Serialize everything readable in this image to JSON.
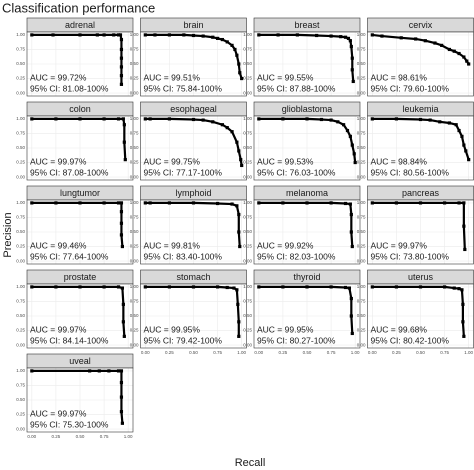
{
  "title": "Classification performance",
  "x_label": "Recall",
  "y_label": "Precision",
  "axes": {
    "xlim": [
      -0.05,
      1.05
    ],
    "ylim": [
      -0.05,
      1.05
    ],
    "xticks": [
      {
        "value": 0,
        "label": "0.00"
      },
      {
        "value": 0.25,
        "label": "0.25"
      },
      {
        "value": 0.5,
        "label": "0.50"
      },
      {
        "value": 0.75,
        "label": "0.75"
      },
      {
        "value": 1,
        "label": "1.00"
      }
    ],
    "yticks": [
      {
        "value": 0,
        "label": "0.00"
      },
      {
        "value": 0.25,
        "label": "0.25"
      },
      {
        "value": 0.5,
        "label": "0.50"
      },
      {
        "value": 0.75,
        "label": "0.75"
      },
      {
        "value": 1,
        "label": "1.00"
      }
    ]
  },
  "chart_data": [
    {
      "type": "scatter",
      "title": "adrenal",
      "annotations": [
        "AUC = 99.72%",
        "95% CI: 81.08-100%"
      ],
      "x": [
        0,
        0.22,
        0.5,
        0.68,
        0.75,
        0.85,
        0.9,
        0.92,
        0.93,
        0.93,
        0.93,
        0.93,
        0.93,
        0.93
      ],
      "values": [
        1,
        1,
        1,
        1,
        1,
        1,
        1,
        1,
        0.92,
        0.75,
        0.6,
        0.45,
        0.3,
        0.15
      ]
    },
    {
      "type": "scatter",
      "title": "brain",
      "annotations": [
        "AUC = 99.51%",
        "95% CI: 75.84-100%"
      ],
      "x": [
        0,
        0.1,
        0.25,
        0.4,
        0.5,
        0.6,
        0.7,
        0.75,
        0.8,
        0.85,
        0.9,
        0.93,
        0.95,
        0.97,
        0.98,
        1
      ],
      "values": [
        1,
        1,
        1,
        1,
        0.99,
        0.98,
        0.96,
        0.94,
        0.92,
        0.88,
        0.82,
        0.75,
        0.65,
        0.5,
        0.35,
        0.25
      ]
    },
    {
      "type": "scatter",
      "title": "breast",
      "annotations": [
        "AUC = 99.55%",
        "95% CI: 87.88-100%"
      ],
      "x": [
        0,
        0.2,
        0.4,
        0.6,
        0.75,
        0.85,
        0.9,
        0.93,
        0.95,
        0.96,
        0.97,
        0.97,
        0.98
      ],
      "values": [
        1,
        1,
        1,
        0.99,
        0.98,
        0.97,
        0.96,
        0.94,
        0.9,
        0.8,
        0.6,
        0.4,
        0.2
      ]
    },
    {
      "type": "scatter",
      "title": "cervix",
      "annotations": [
        "AUC = 98.61%",
        "95% CI: 79.60-100%"
      ],
      "x": [
        0,
        0.1,
        0.3,
        0.45,
        0.55,
        0.65,
        0.72,
        0.8,
        0.85,
        0.9,
        0.95,
        0.98,
        1
      ],
      "values": [
        1,
        0.98,
        0.95,
        0.93,
        0.9,
        0.86,
        0.82,
        0.75,
        0.72,
        0.68,
        0.62,
        0.55,
        0.5
      ]
    },
    {
      "type": "scatter",
      "title": "colon",
      "annotations": [
        "AUC = 99.97%",
        "95% CI: 87.08-100%"
      ],
      "x": [
        0,
        0.25,
        0.5,
        0.75,
        0.9,
        0.95,
        0.96,
        0.96,
        0.97
      ],
      "values": [
        1,
        1,
        1,
        1,
        1,
        1,
        0.9,
        0.6,
        0.3
      ]
    },
    {
      "type": "scatter",
      "title": "esophageal",
      "annotations": [
        "AUC = 99.75%",
        "95% CI: 77.17-100%"
      ],
      "x": [
        0,
        0.05,
        0.25,
        0.5,
        0.6,
        0.7,
        0.8,
        0.85,
        0.9,
        0.95,
        0.97,
        0.99,
        1
      ],
      "values": [
        1,
        1,
        1,
        0.99,
        0.98,
        0.95,
        0.9,
        0.85,
        0.78,
        0.6,
        0.45,
        0.3,
        0.2
      ]
    },
    {
      "type": "scatter",
      "title": "glioblastoma",
      "annotations": [
        "AUC = 99.53%",
        "95% CI: 76.03-100%"
      ],
      "x": [
        0,
        0.25,
        0.5,
        0.65,
        0.75,
        0.82,
        0.88,
        0.92,
        0.95,
        0.97,
        0.99,
        1
      ],
      "values": [
        1,
        1,
        1,
        0.99,
        0.98,
        0.95,
        0.9,
        0.8,
        0.7,
        0.55,
        0.4,
        0.25
      ]
    },
    {
      "type": "scatter",
      "title": "leukemia",
      "annotations": [
        "AUC = 98.84%",
        "95% CI: 80.56-100%"
      ],
      "x": [
        0,
        0.25,
        0.5,
        0.6,
        0.7,
        0.8,
        0.87,
        0.9,
        0.93,
        0.95,
        0.97,
        1
      ],
      "values": [
        1,
        1,
        0.99,
        0.98,
        0.95,
        0.93,
        0.9,
        0.8,
        0.7,
        0.55,
        0.45,
        0.3
      ]
    },
    {
      "type": "scatter",
      "title": "lungtumor",
      "annotations": [
        "AUC = 99.46%",
        "95% CI: 77.64-100%"
      ],
      "x": [
        0,
        0.25,
        0.5,
        0.75,
        0.9,
        0.93,
        0.93,
        0.93,
        0.93,
        0.94
      ],
      "values": [
        1,
        1,
        1,
        1,
        1,
        1,
        0.85,
        0.65,
        0.45,
        0.25
      ]
    },
    {
      "type": "scatter",
      "title": "lymphoid",
      "annotations": [
        "AUC = 99.81%",
        "95% CI: 83.40-100%"
      ],
      "x": [
        0,
        0.05,
        0.25,
        0.5,
        0.75,
        0.9,
        0.95,
        0.97,
        0.97,
        0.98
      ],
      "values": [
        1,
        1,
        1,
        1,
        0.99,
        0.98,
        0.95,
        0.8,
        0.5,
        0.25
      ]
    },
    {
      "type": "scatter",
      "title": "melanoma",
      "annotations": [
        "AUC = 99.92%",
        "95% CI: 82.03-100%"
      ],
      "x": [
        0,
        0.25,
        0.5,
        0.75,
        0.9,
        0.95,
        0.96,
        0.96,
        0.97
      ],
      "values": [
        1,
        1,
        1,
        1,
        0.99,
        0.98,
        0.8,
        0.5,
        0.25
      ]
    },
    {
      "type": "scatter",
      "title": "pancreas",
      "annotations": [
        "AUC = 99.97%",
        "95% CI: 73.80-100%"
      ],
      "x": [
        0,
        0.25,
        0.5,
        0.75,
        0.9,
        0.95,
        0.95,
        0.96
      ],
      "values": [
        1,
        1,
        1,
        1,
        1,
        1,
        0.6,
        0.2
      ]
    },
    {
      "type": "scatter",
      "title": "prostate",
      "annotations": [
        "AUC = 99.97%",
        "95% CI: 84.14-100%"
      ],
      "x": [
        0,
        0.25,
        0.5,
        0.75,
        0.9,
        0.94,
        0.95,
        0.95,
        0.96
      ],
      "values": [
        1,
        1,
        1,
        1,
        1,
        0.98,
        0.7,
        0.4,
        0.15
      ]
    },
    {
      "type": "scatter",
      "title": "stomach",
      "annotations": [
        "AUC = 99.95%",
        "95% CI: 79.42-100%"
      ],
      "x": [
        0,
        0.25,
        0.5,
        0.75,
        0.85,
        0.92,
        0.95,
        0.96,
        0.97,
        0.97
      ],
      "values": [
        1,
        1,
        1,
        1,
        0.99,
        0.98,
        0.95,
        0.7,
        0.4,
        0.15
      ]
    },
    {
      "type": "scatter",
      "title": "thyroid",
      "annotations": [
        "AUC = 99.95%",
        "95% CI: 80.27-100%"
      ],
      "x": [
        0,
        0.25,
        0.5,
        0.75,
        0.9,
        0.94,
        0.96,
        0.96,
        0.97
      ],
      "values": [
        1,
        1,
        1,
        1,
        0.99,
        0.98,
        0.8,
        0.5,
        0.2
      ]
    },
    {
      "type": "scatter",
      "title": "uterus",
      "annotations": [
        "AUC = 99.68%",
        "95% CI: 80.42-100%"
      ],
      "x": [
        0,
        0.25,
        0.5,
        0.75,
        0.85,
        0.9,
        0.93,
        0.94,
        0.94,
        0.95
      ],
      "values": [
        1,
        1,
        1,
        1,
        0.98,
        0.97,
        0.95,
        0.7,
        0.4,
        0.15
      ]
    },
    {
      "type": "scatter",
      "title": "uveal",
      "annotations": [
        "AUC = 99.97%",
        "95% CI: 75.30-100%"
      ],
      "x": [
        0,
        0.6,
        0.7,
        0.8,
        0.9,
        0.93,
        0.93,
        0.93,
        0.93,
        0.94
      ],
      "values": [
        1,
        1,
        1,
        1,
        1,
        1,
        0.8,
        0.55,
        0.3,
        0.1
      ]
    }
  ]
}
